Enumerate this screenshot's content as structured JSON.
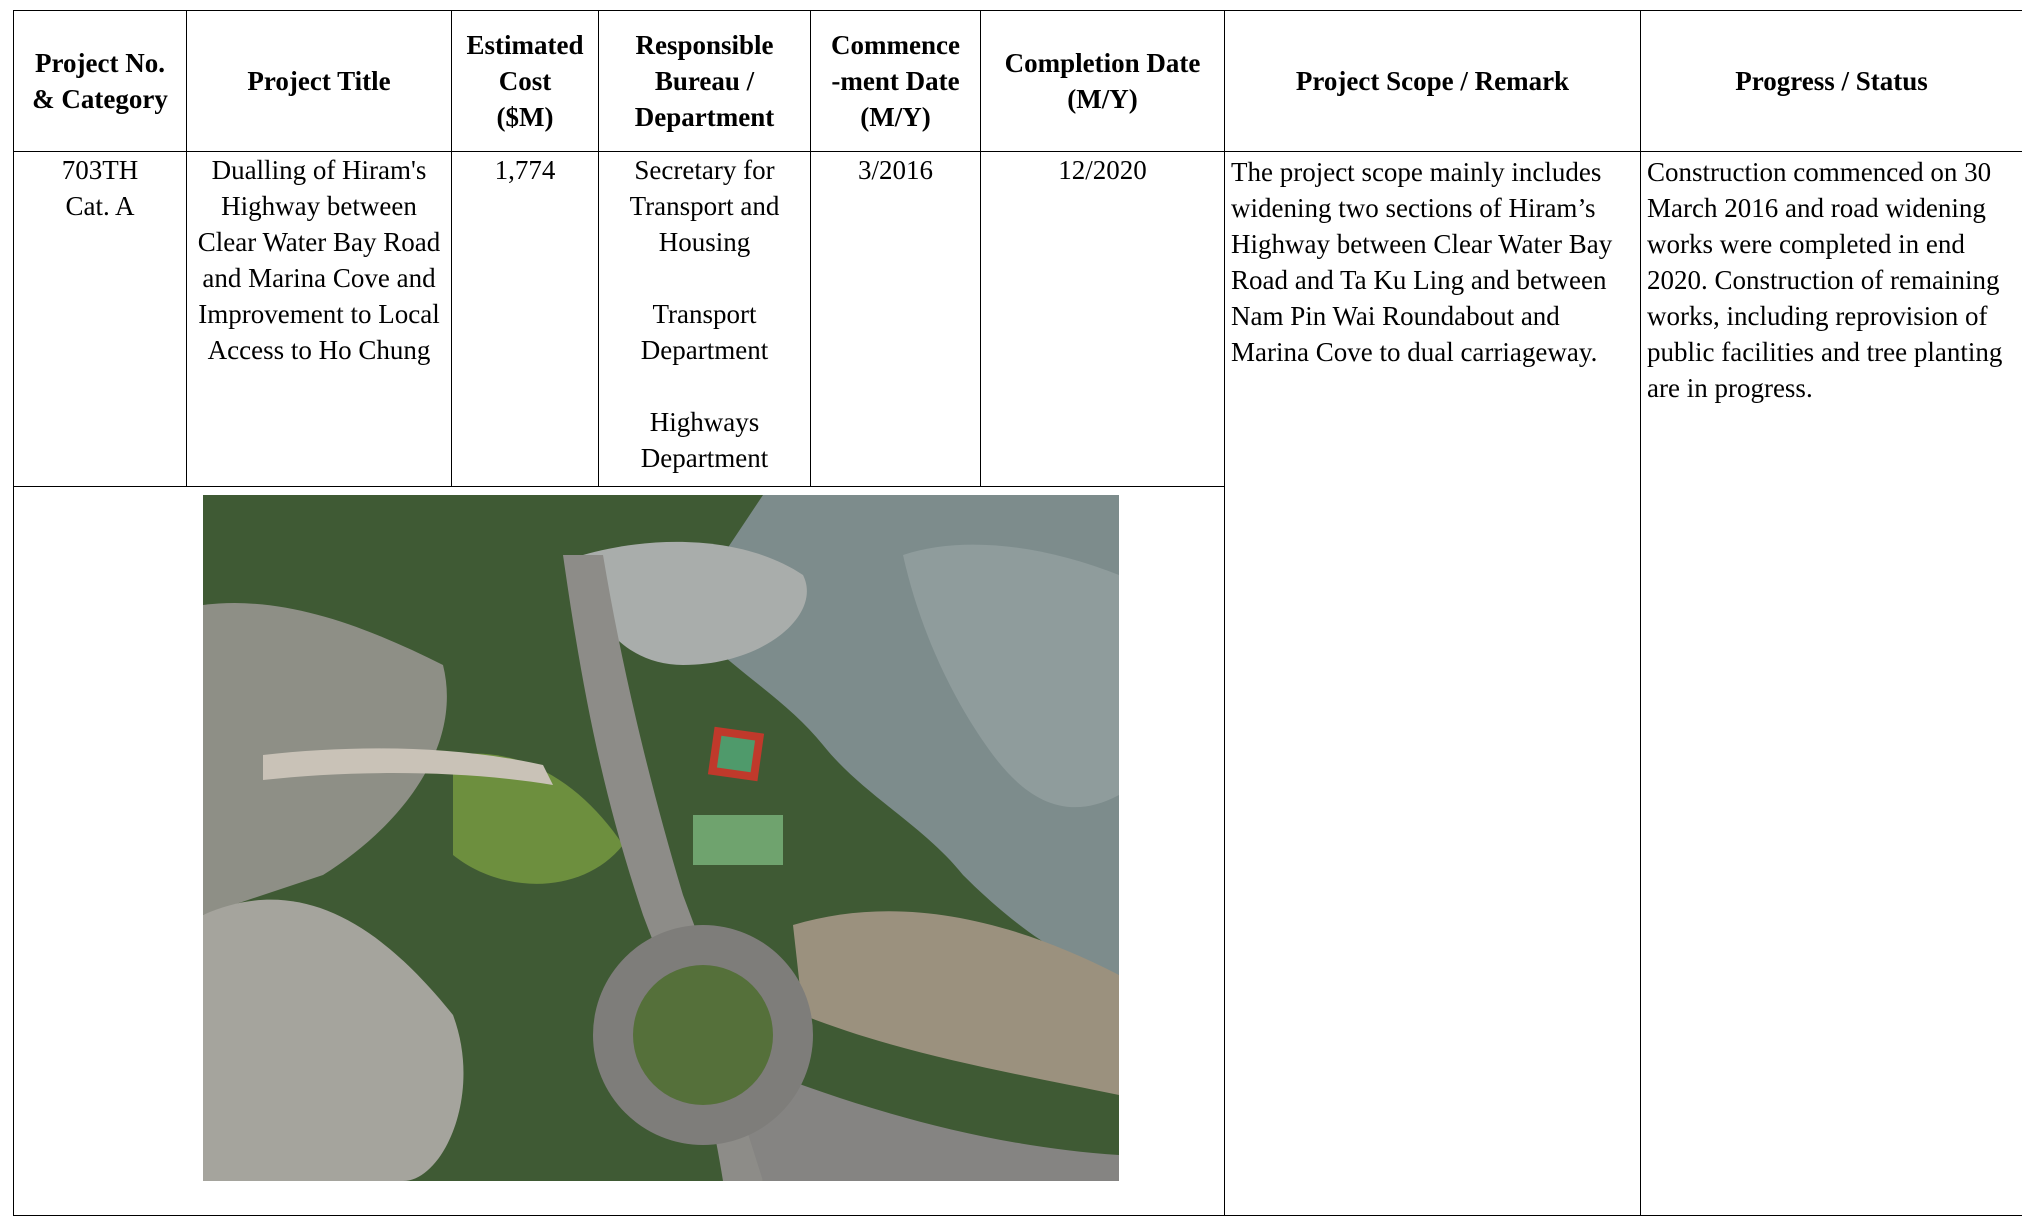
{
  "table": {
    "header": [
      "Project No.\n& Category",
      "Project Title",
      "Estimated\nCost\n($M)",
      "Responsible\nBureau /\nDepartment",
      "Commence\n-ment Date\n(M/Y)",
      "Completion Date\n(M/Y)",
      "Project Scope / Remark",
      "Progress / Status"
    ],
    "rows": [
      {
        "project_no": "703TH\nCat. A",
        "title": "Dualling of Hiram's Highway between Clear Water Bay Road and Marina Cove and Improvement to Local Access to Ho Chung",
        "cost": "1,774",
        "bureau": [
          "Secretary for Transport and Housing",
          "Transport Department",
          "Highways Department"
        ],
        "commencement": "3/2016",
        "completion": "12/2020",
        "scope": "The project scope mainly includes widening two sections of Hiram’s Highway between Clear Water Bay Road and Ta Ku Ling and between Nam Pin Wai Roundabout and Marina Cove to dual carriageway.",
        "progress": "Construction commenced on 30 March 2016 and road widening works were completed in end 2020. Construction of remaining works, including reprovision of public facilities and tree planting are in progress."
      }
    ]
  }
}
